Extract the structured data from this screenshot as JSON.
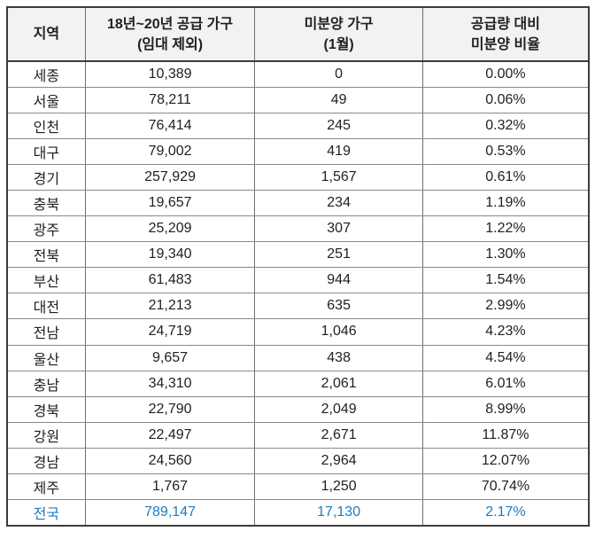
{
  "colors": {
    "header_bg": "#f2f2f2",
    "outer_border": "#3c3c3c",
    "inner_vertical_border": "#6f6f6f",
    "inner_horizontal_border": "#8a8a8a",
    "body_text": "#1f1f1f",
    "total_row_text": "#1e7cc0",
    "page_bg": "#ffffff"
  },
  "table": {
    "headers": [
      "지역",
      "18년~20년 공급 가구\n(임대 제외)",
      "미분양 가구\n(1월)",
      "공급량 대비\n미분양 비율"
    ],
    "rows": [
      {
        "region": "세종",
        "supply": "10,389",
        "unsold": "0",
        "ratio": "0.00%",
        "is_total": false
      },
      {
        "region": "서울",
        "supply": "78,211",
        "unsold": "49",
        "ratio": "0.06%",
        "is_total": false
      },
      {
        "region": "인천",
        "supply": "76,414",
        "unsold": "245",
        "ratio": "0.32%",
        "is_total": false
      },
      {
        "region": "대구",
        "supply": "79,002",
        "unsold": "419",
        "ratio": "0.53%",
        "is_total": false
      },
      {
        "region": "경기",
        "supply": "257,929",
        "unsold": "1,567",
        "ratio": "0.61%",
        "is_total": false
      },
      {
        "region": "충북",
        "supply": "19,657",
        "unsold": "234",
        "ratio": "1.19%",
        "is_total": false
      },
      {
        "region": "광주",
        "supply": "25,209",
        "unsold": "307",
        "ratio": "1.22%",
        "is_total": false
      },
      {
        "region": "전북",
        "supply": "19,340",
        "unsold": "251",
        "ratio": "1.30%",
        "is_total": false
      },
      {
        "region": "부산",
        "supply": "61,483",
        "unsold": "944",
        "ratio": "1.54%",
        "is_total": false
      },
      {
        "region": "대전",
        "supply": "21,213",
        "unsold": "635",
        "ratio": "2.99%",
        "is_total": false
      },
      {
        "region": "전남",
        "supply": "24,719",
        "unsold": "1,046",
        "ratio": "4.23%",
        "is_total": false
      },
      {
        "region": "울산",
        "supply": "9,657",
        "unsold": "438",
        "ratio": "4.54%",
        "is_total": false
      },
      {
        "region": "충남",
        "supply": "34,310",
        "unsold": "2,061",
        "ratio": "6.01%",
        "is_total": false
      },
      {
        "region": "경북",
        "supply": "22,790",
        "unsold": "2,049",
        "ratio": "8.99%",
        "is_total": false
      },
      {
        "region": "강원",
        "supply": "22,497",
        "unsold": "2,671",
        "ratio": "11.87%",
        "is_total": false
      },
      {
        "region": "경남",
        "supply": "24,560",
        "unsold": "2,964",
        "ratio": "12.07%",
        "is_total": false
      },
      {
        "region": "제주",
        "supply": "1,767",
        "unsold": "1,250",
        "ratio": "70.74%",
        "is_total": false
      },
      {
        "region": "전국",
        "supply": "789,147",
        "unsold": "17,130",
        "ratio": "2.17%",
        "is_total": true
      }
    ]
  },
  "chart_data": {
    "type": "table",
    "title": "",
    "columns": [
      "지역",
      "18년~20년 공급 가구 (임대 제외)",
      "미분양 가구 (1월)",
      "공급량 대비 미분양 비율"
    ],
    "rows": [
      [
        "세종",
        10389,
        0,
        0.0
      ],
      [
        "서울",
        78211,
        49,
        0.06
      ],
      [
        "인천",
        76414,
        245,
        0.32
      ],
      [
        "대구",
        79002,
        419,
        0.53
      ],
      [
        "경기",
        257929,
        1567,
        0.61
      ],
      [
        "충북",
        19657,
        234,
        1.19
      ],
      [
        "광주",
        25209,
        307,
        1.22
      ],
      [
        "전북",
        19340,
        251,
        1.3
      ],
      [
        "부산",
        61483,
        944,
        1.54
      ],
      [
        "대전",
        21213,
        635,
        2.99
      ],
      [
        "전남",
        24719,
        1046,
        4.23
      ],
      [
        "울산",
        9657,
        438,
        4.54
      ],
      [
        "충남",
        34310,
        2061,
        6.01
      ],
      [
        "경북",
        22790,
        2049,
        8.99
      ],
      [
        "강원",
        22497,
        2671,
        11.87
      ],
      [
        "경남",
        24560,
        2964,
        12.07
      ],
      [
        "제주",
        1767,
        1250,
        70.74
      ],
      [
        "전국",
        789147,
        17130,
        2.17
      ]
    ],
    "ratio_unit": "percent",
    "notes": "Last row 전국 is the nationwide total, rendered in blue"
  }
}
